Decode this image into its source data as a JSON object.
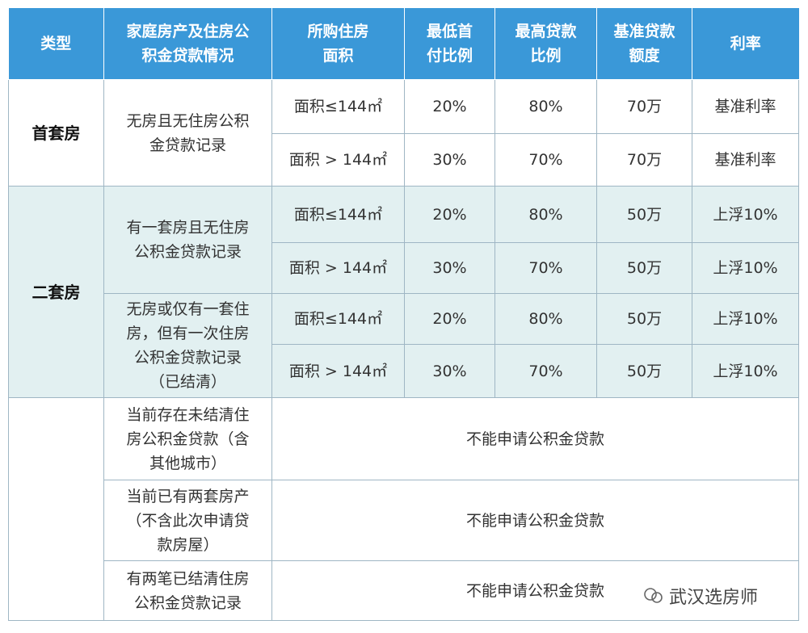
{
  "table": {
    "header": [
      "类型",
      "家庭房产及住房公积金贷款情况",
      "所购住房面积",
      "最低首付比例",
      "最高贷款比例",
      "基准贷款额度",
      "利率"
    ],
    "groups": [
      {
        "type": "首套房",
        "conditions": [
          {
            "label": "无房且无住房公积金贷款记录",
            "rows": [
              [
                "面积≤144㎡",
                "20%",
                "80%",
                "70万",
                "基准利率"
              ],
              [
                "面积 > 144㎡",
                "30%",
                "70%",
                "70万",
                "基准利率"
              ]
            ]
          }
        ]
      },
      {
        "type": "二套房",
        "conditions": [
          {
            "label": "有一套房且无住房公积金贷款记录",
            "rows": [
              [
                "面积≤144㎡",
                "20%",
                "80%",
                "50万",
                "上浮10%"
              ],
              [
                "面积 > 144㎡",
                "30%",
                "70%",
                "50万",
                "上浮10%"
              ]
            ]
          },
          {
            "label": "无房或仅有一套住房，但有一次住房公积金贷款记录（已结清）",
            "rows": [
              [
                "面积≤144㎡",
                "20%",
                "80%",
                "50万",
                "上浮10%"
              ],
              [
                "面积 > 144㎡",
                "30%",
                "70%",
                "50万",
                "上浮10%"
              ]
            ]
          }
        ]
      }
    ],
    "restrictions": [
      {
        "label": "当前存在未结清住房公积金贷款（含其他城市）",
        "note": "不能申请公积金贷款"
      },
      {
        "label": "当前已有两套房产（不含此次申请贷款房屋）",
        "note": "不能申请公积金贷款"
      },
      {
        "label": "有两笔已结清住房公积金贷款记录",
        "note": "不能申请公积金贷款"
      }
    ]
  },
  "watermark": "武汉选房师"
}
